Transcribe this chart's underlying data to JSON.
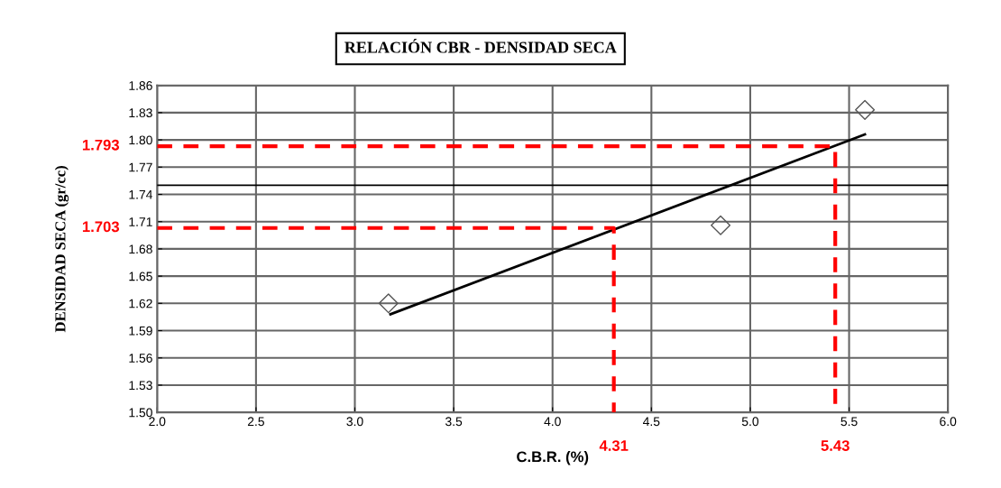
{
  "chart_data": {
    "type": "scatter",
    "title": "RELACIÓN CBR - DENSIDAD SECA",
    "xlabel": "C.B.R. (%)",
    "ylabel": "DENSIDAD SECA (gr/cc)",
    "xlim": [
      2.0,
      6.0
    ],
    "xticks": [
      {
        "value": 2.0,
        "label": "2.0"
      },
      2.5,
      {
        "value": 3.0,
        "label": "3.0"
      },
      3.5,
      {
        "value": 4.0,
        "label": "4.0"
      },
      4.5,
      {
        "value": 5.0,
        "label": "5.0"
      },
      5.5,
      {
        "value": 6.0,
        "label": "6.0"
      }
    ],
    "ylim": [
      1.5,
      1.86
    ],
    "yticks": [
      {
        "value": 1.5,
        "label": "1.50"
      },
      1.53,
      1.56,
      1.59,
      1.62,
      1.65,
      1.68,
      1.71,
      1.74,
      1.77,
      {
        "value": 1.8,
        "label": "1.80"
      },
      1.83,
      1.86
    ],
    "grid": true,
    "series": [
      {
        "marker": "diamond",
        "color": "#555555",
        "x": [
          3.17,
          4.85,
          5.58
        ],
        "values": [
          1.62,
          1.706,
          1.833
        ]
      },
      {
        "type": "line",
        "color": "#000000",
        "line_style": "solid",
        "x": [
          3.18,
          5.58
        ],
        "values": [
          1.608,
          1.806
        ]
      },
      {
        "type": "line",
        "color": "#ff0000",
        "line_style": "dashed",
        "x": [
          2.0,
          5.43,
          5.43
        ],
        "values": [
          1.793,
          1.793,
          1.5
        ]
      },
      {
        "type": "line",
        "color": "#ff0000",
        "line_style": "dashed",
        "x": [
          2.0,
          4.31,
          4.31
        ],
        "values": [
          1.703,
          1.703,
          1.5
        ]
      }
    ],
    "ref_lines": [
      {
        "axis": "y",
        "value": 1.75,
        "color": "#000000",
        "line_style": "solid"
      }
    ],
    "annotations": [
      "1.793",
      "1.703",
      {
        "text": "4.31",
        "x": 4.31,
        "y": 1.5
      },
      {
        "text": "5.43",
        "x": 5.43,
        "y": 1.5
      }
    ]
  }
}
